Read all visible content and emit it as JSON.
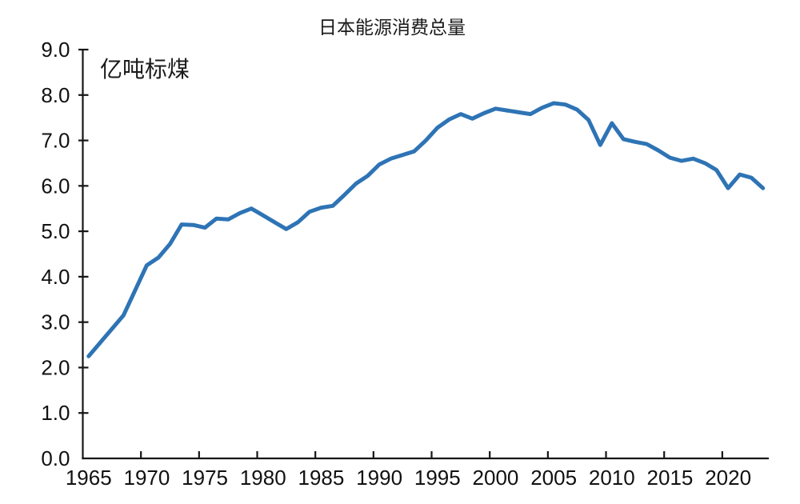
{
  "chart": {
    "title": "日本能源消费总量",
    "unit_label": "亿吨标煤"
  },
  "chart_data": {
    "type": "line",
    "title": "日本能源消费总量",
    "ylabel": "亿吨标煤",
    "legend_position": "none",
    "grid": false,
    "line_color": "#2E74B5",
    "axis_color": "#161616",
    "ylim": [
      0.0,
      9.0
    ],
    "ytick_labels": [
      "0.0",
      "1.0",
      "2.0",
      "3.0",
      "4.0",
      "5.0",
      "6.0",
      "7.0",
      "8.0",
      "9.0"
    ],
    "xticks": [
      1965,
      1970,
      1975,
      1980,
      1985,
      1990,
      1995,
      2000,
      2005,
      2010,
      2015,
      2020
    ],
    "x": [
      1965,
      1966,
      1967,
      1968,
      1969,
      1970,
      1971,
      1972,
      1973,
      1974,
      1975,
      1976,
      1977,
      1978,
      1979,
      1980,
      1981,
      1982,
      1983,
      1984,
      1985,
      1986,
      1987,
      1988,
      1989,
      1990,
      1991,
      1992,
      1993,
      1994,
      1995,
      1996,
      1997,
      1998,
      1999,
      2000,
      2001,
      2002,
      2003,
      2004,
      2005,
      2006,
      2007,
      2008,
      2009,
      2010,
      2011,
      2012,
      2013,
      2014,
      2015,
      2016,
      2017,
      2018,
      2019,
      2020,
      2021,
      2022,
      2023
    ],
    "values": [
      2.25,
      2.55,
      2.85,
      3.15,
      3.7,
      4.25,
      4.42,
      4.72,
      5.15,
      5.14,
      5.08,
      5.28,
      5.26,
      5.4,
      5.5,
      5.35,
      5.2,
      5.05,
      5.2,
      5.43,
      5.52,
      5.56,
      5.8,
      6.05,
      6.22,
      6.47,
      6.6,
      6.68,
      6.76,
      7.0,
      7.28,
      7.46,
      7.58,
      7.48,
      7.6,
      7.7,
      7.66,
      7.62,
      7.58,
      7.72,
      7.82,
      7.79,
      7.68,
      7.45,
      6.9,
      7.38,
      7.03,
      6.97,
      6.92,
      6.78,
      6.62,
      6.55,
      6.6,
      6.5,
      6.35,
      5.95,
      6.25,
      6.18,
      5.95
    ]
  }
}
